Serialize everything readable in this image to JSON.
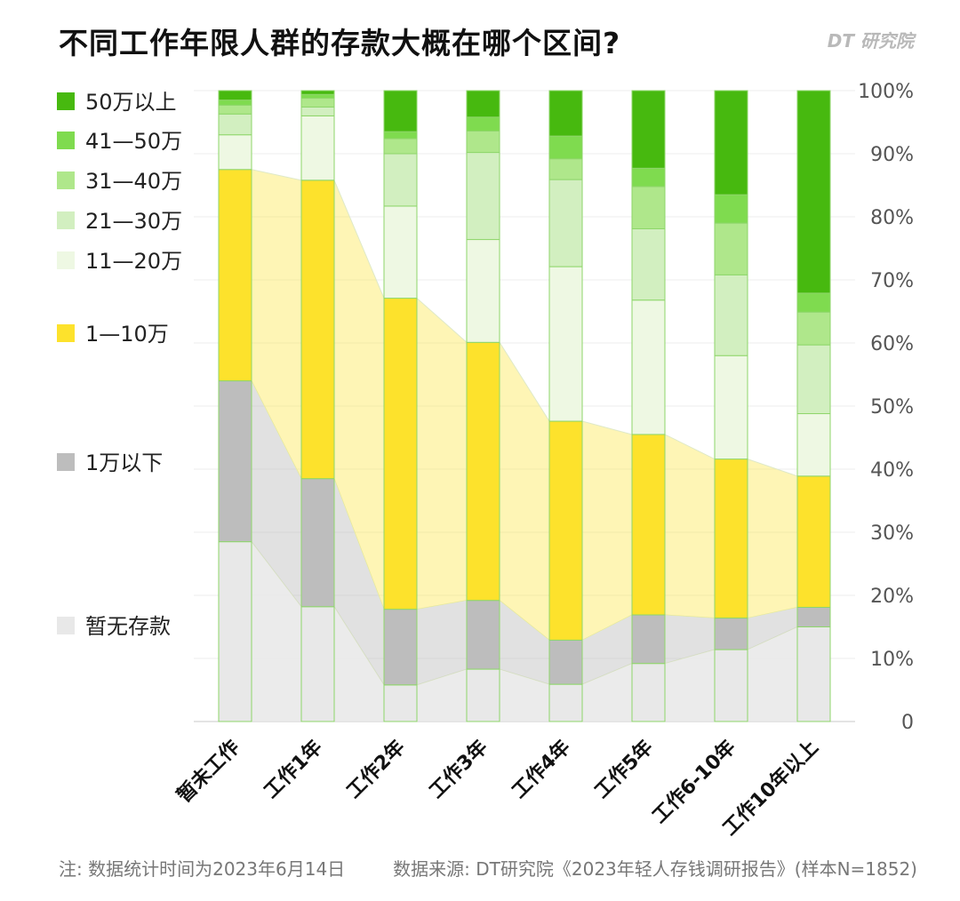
{
  "header": {
    "title": "不同工作年限人群的存款大概在哪个区间?",
    "brand": "DT 研究院"
  },
  "footer": {
    "note": "注: 数据统计时间为2023年6月14日",
    "source": "数据来源: DT研究院《2023年轻人存钱调研报告》(样本N=1852)"
  },
  "chart_data": {
    "type": "bar",
    "stacked": true,
    "title": "不同工作年限人群的存款大概在哪个区间?",
    "categories": [
      "暂未工作",
      "工作1年",
      "工作2年",
      "工作3年",
      "工作4年",
      "工作5年",
      "工作6-10年",
      "工作10年以上"
    ],
    "y_tick_labels": [
      "0",
      "10%",
      "20%",
      "30%",
      "40%",
      "50%",
      "60%",
      "70%",
      "80%",
      "90%",
      "100%"
    ],
    "ylim": [
      0,
      100
    ],
    "y_axis_side": "right",
    "grid": true,
    "legend_position": "left",
    "series": [
      {
        "name": "暂无存款",
        "color": "#e8e8e8",
        "values": [
          28.5,
          18.2,
          5.8,
          8.3,
          5.9,
          9.2,
          11.4,
          15.0
        ]
      },
      {
        "name": "1万以下",
        "color": "#bdbdbd",
        "values": [
          25.5,
          20.3,
          12.0,
          10.9,
          7.0,
          7.7,
          5.0,
          3.1
        ]
      },
      {
        "name": "1—10万",
        "color": "#fde22c",
        "values": [
          33.5,
          47.3,
          49.3,
          40.9,
          34.7,
          28.6,
          25.2,
          20.8
        ]
      },
      {
        "name": "11—20万",
        "color": "#eef8e3",
        "values": [
          5.5,
          10.2,
          14.6,
          16.3,
          24.5,
          21.3,
          16.4,
          9.9
        ]
      },
      {
        "name": "21—30万",
        "color": "#d2efc0",
        "values": [
          3.3,
          1.4,
          8.3,
          13.8,
          13.8,
          11.3,
          12.8,
          10.9
        ]
      },
      {
        "name": "31—40万",
        "color": "#afe78b",
        "values": [
          1.4,
          1.4,
          2.4,
          3.4,
          3.3,
          6.7,
          8.2,
          5.2
        ]
      },
      {
        "name": "41—50万",
        "color": "#7fdb4f",
        "values": [
          0.8,
          0.6,
          1.1,
          2.2,
          3.6,
          2.9,
          4.5,
          3.0
        ]
      },
      {
        "name": "50万以上",
        "color": "#47b90f",
        "values": [
          1.5,
          0.6,
          6.5,
          4.2,
          7.2,
          12.3,
          16.5,
          32.1
        ]
      }
    ]
  }
}
